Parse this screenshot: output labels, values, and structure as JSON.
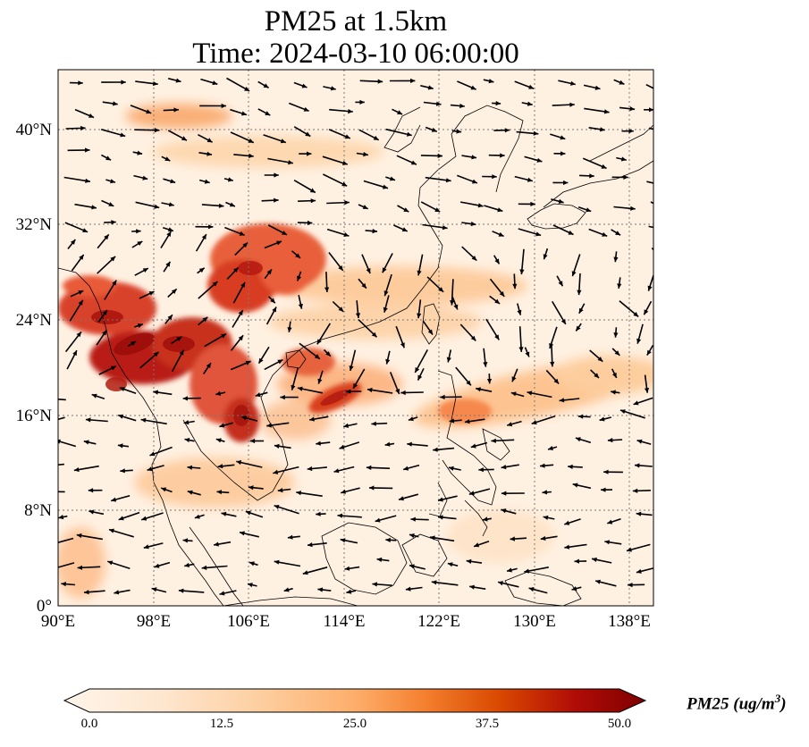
{
  "title": {
    "line1": "PM25 at 1.5km",
    "line2": "Time: 2024-03-10 06:00:00"
  },
  "map": {
    "lon_range": [
      90,
      140
    ],
    "lat_range": [
      0,
      45
    ],
    "x_ticks": [
      "90°E",
      "98°E",
      "106°E",
      "114°E",
      "122°E",
      "130°E",
      "138°E"
    ],
    "y_ticks": [
      "0°",
      "8°N",
      "16°N",
      "24°N",
      "32°N",
      "40°N"
    ],
    "gridlines": true,
    "coastlines": true,
    "wind_vectors": true
  },
  "colorbar": {
    "ticks": [
      "0.0",
      "12.5",
      "25.0",
      "37.5",
      "50.0"
    ],
    "min": 0,
    "max": 50,
    "label": "PM25 (ug/m",
    "label_exp": "3",
    "colormap": [
      "#fff5eb",
      "#fdd8b2",
      "#fdab67",
      "#f67824",
      "#d84801",
      "#a33503",
      "#7f2704"
    ],
    "extend": "both"
  }
}
